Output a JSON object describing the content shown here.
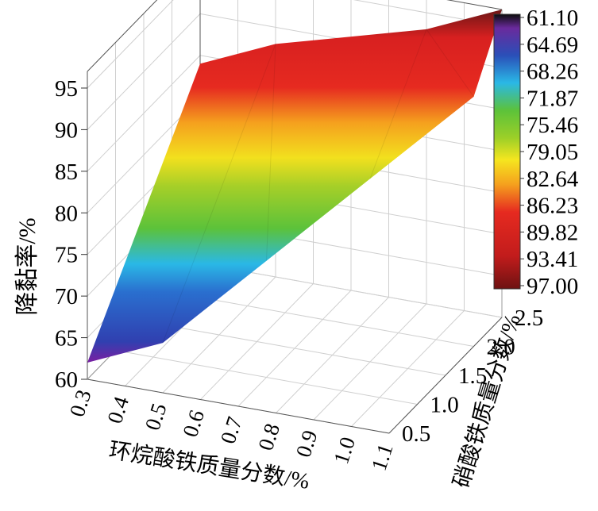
{
  "chart_data": {
    "type": "surface3d",
    "xlabel": "环烷酸铁质量分数/%",
    "ylabel": "硝酸铁质量分数/%",
    "zlabel": "降黏率/%",
    "x_ticks": [
      "0.3",
      "0.4",
      "0.5",
      "0.6",
      "0.7",
      "0.8",
      "0.9",
      "1.0",
      "1.1"
    ],
    "y_ticks": [
      "0.5",
      "1.0",
      "1.5",
      "2.0",
      "2.5"
    ],
    "z_ticks": [
      "60",
      "65",
      "70",
      "75",
      "80",
      "85",
      "90",
      "95"
    ],
    "xlim": [
      0.3,
      1.1
    ],
    "ylim": [
      0.5,
      2.5
    ],
    "zlim": [
      60,
      97
    ],
    "colorbar": {
      "ticks": [
        "61.10",
        "64.69",
        "68.26",
        "71.87",
        "75.46",
        "79.05",
        "82.64",
        "86.23",
        "89.82",
        "93.41",
        "97.00"
      ],
      "colors": [
        "#0d0d0d",
        "#6a2a9c",
        "#2a4fb8",
        "#2ab8e6",
        "#7ec823",
        "#c8d826",
        "#f5e61f",
        "#f5a01e",
        "#e62a20",
        "#c21c1c",
        "#6e1212"
      ]
    },
    "grid": true,
    "surface": [
      {
        "x": 0.3,
        "y": 0.5,
        "z": 62.0
      },
      {
        "x": 0.5,
        "y": 0.5,
        "z": 66.0
      },
      {
        "x": 0.7,
        "y": 1.0,
        "z": 74.0
      },
      {
        "x": 0.9,
        "y": 1.5,
        "z": 82.0
      },
      {
        "x": 1.1,
        "y": 2.0,
        "z": 90.0
      },
      {
        "x": 1.1,
        "y": 2.5,
        "z": 97.0
      },
      {
        "x": 0.9,
        "y": 2.5,
        "z": 93.0
      },
      {
        "x": 0.5,
        "y": 2.5,
        "z": 88.0
      },
      {
        "x": 0.3,
        "y": 2.5,
        "z": 84.0
      }
    ]
  }
}
